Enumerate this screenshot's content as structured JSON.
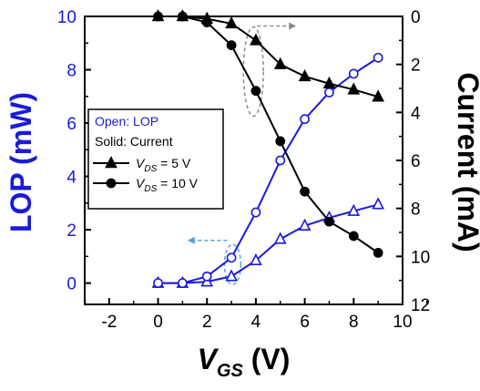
{
  "chart_data": {
    "type": "line",
    "x": [
      0,
      1,
      2,
      3,
      4,
      5,
      6,
      7,
      8,
      9
    ],
    "xlabel_main": "V",
    "xlabel_sub": "GS",
    "xlabel_unit": " (V)",
    "ylabel_left": "LOP (mW)",
    "ylabel_right": "Current (mA)",
    "xlim": [
      -3,
      10
    ],
    "ylim_left": [
      -0.8,
      10
    ],
    "ylim_right": [
      12,
      0
    ],
    "x_ticks": [
      "-2",
      "0",
      "2",
      "4",
      "6",
      "8",
      "10"
    ],
    "y_left_ticks": [
      "0",
      "2",
      "4",
      "6",
      "8",
      "10"
    ],
    "y_right_ticks": [
      "0",
      "2",
      "4",
      "6",
      "8",
      "10",
      "12"
    ],
    "grid": false,
    "legend": {
      "title_open": "Open: LOP",
      "title_solid": "Solid: Current",
      "entries": [
        {
          "label_main": "V",
          "label_sub": "DS",
          "label_rest": " = 5 V",
          "marker": "triangle"
        },
        {
          "label_main": "V",
          "label_sub": "DS",
          "label_rest": " = 10 V",
          "marker": "circle"
        }
      ]
    },
    "series": [
      {
        "axis": "left",
        "marker": "triangle",
        "fill": "open",
        "color": "#1a1adb",
        "values": [
          0.0,
          0.0,
          0.05,
          0.25,
          0.85,
          1.65,
          2.15,
          2.45,
          2.7,
          2.95
        ]
      },
      {
        "axis": "left",
        "marker": "circle",
        "fill": "open",
        "color": "#1a1adb",
        "values": [
          0.0,
          0.0,
          0.25,
          0.95,
          2.65,
          4.6,
          6.15,
          7.15,
          7.85,
          8.45
        ]
      },
      {
        "axis": "right",
        "marker": "triangle",
        "fill": "solid",
        "color": "#000000",
        "values": [
          0.0,
          0.0,
          0.1,
          0.3,
          1.0,
          2.0,
          2.5,
          2.8,
          3.05,
          3.35
        ]
      },
      {
        "axis": "right",
        "marker": "circle",
        "fill": "solid",
        "color": "#000000",
        "values": [
          0.0,
          0.0,
          0.25,
          1.2,
          3.1,
          5.2,
          7.3,
          8.55,
          9.15,
          9.85
        ]
      }
    ],
    "colors": {
      "lop": "#1a1adb",
      "current": "#000000",
      "arrow_blue": "#5aa0e6",
      "arrow_gray": "#8c8c8c"
    }
  }
}
